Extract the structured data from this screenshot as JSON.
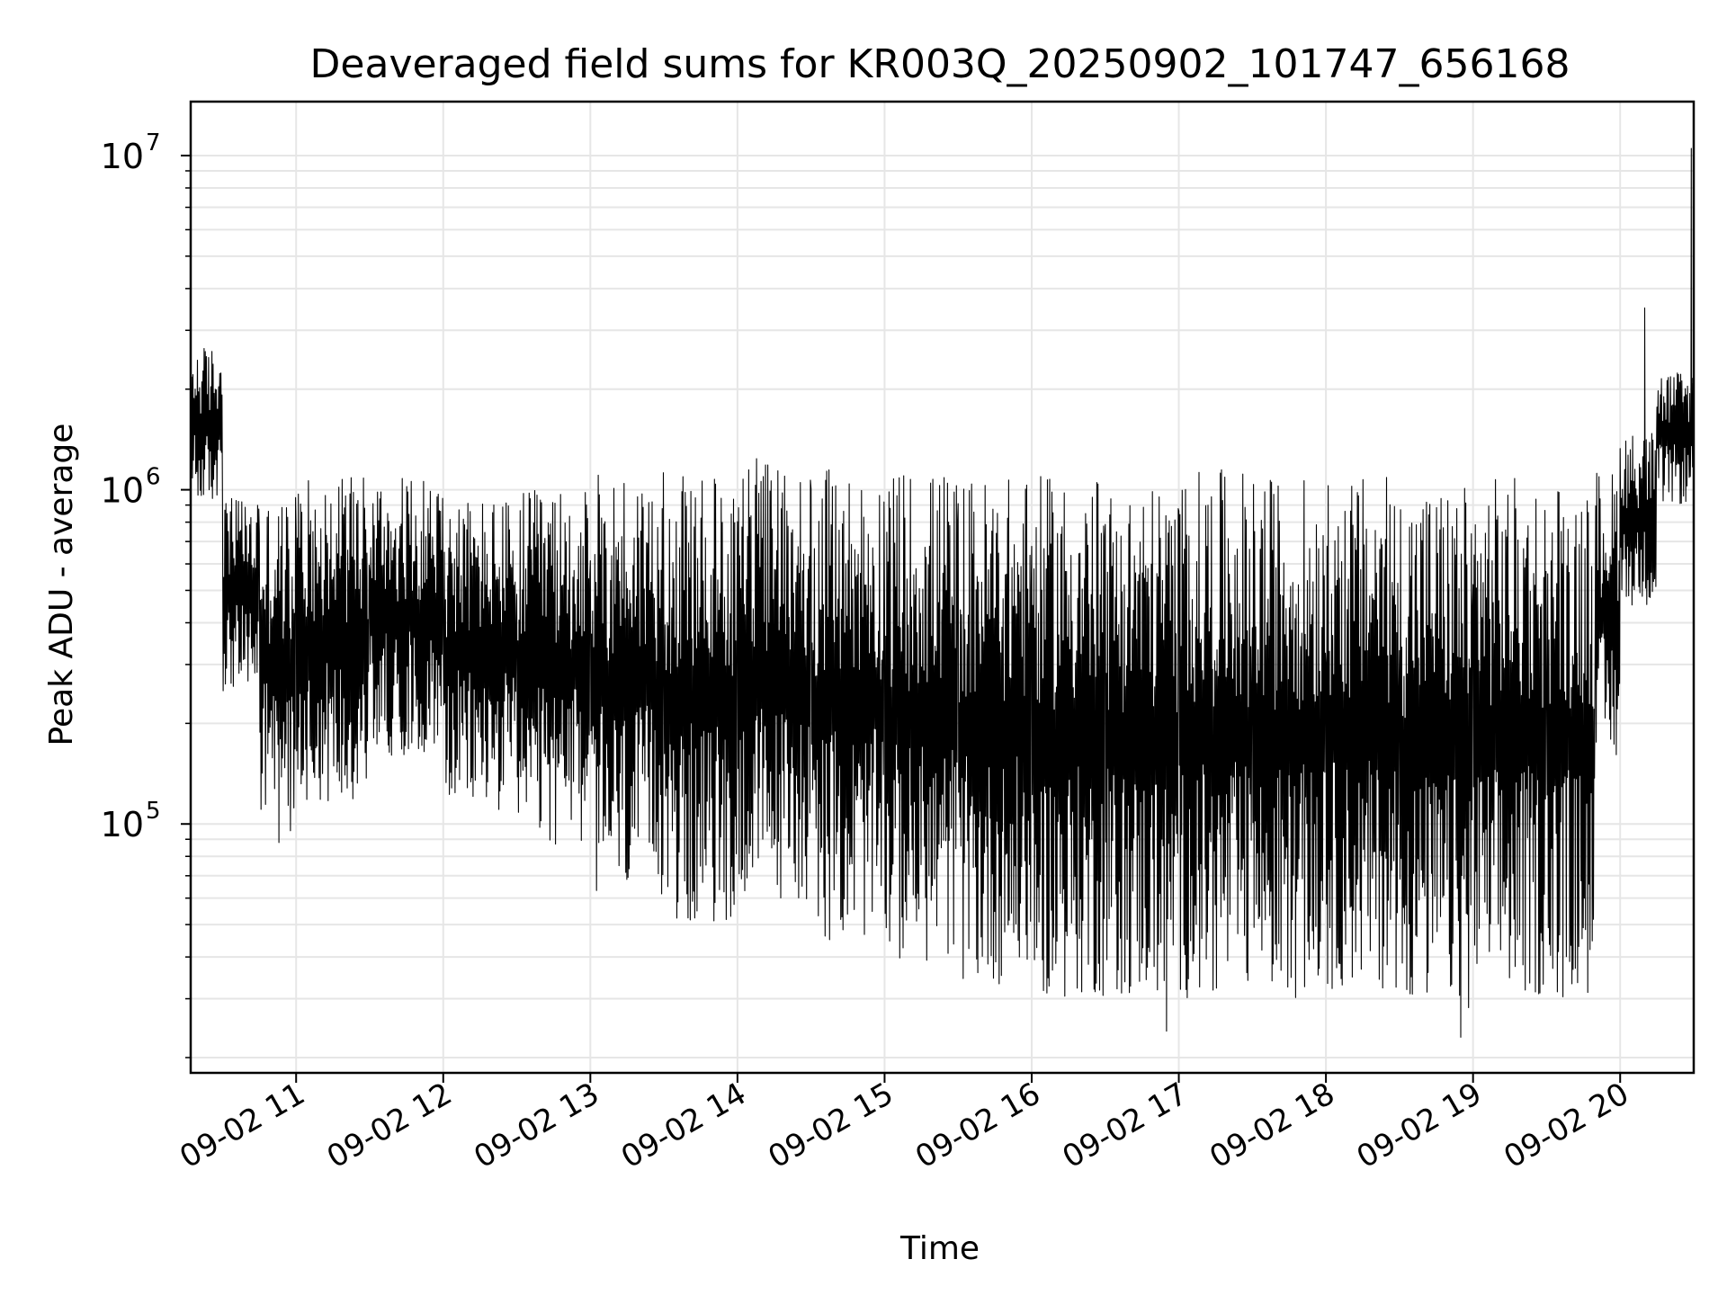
{
  "chart_data": {
    "type": "line",
    "title": "Deaveraged field sums for KR003Q_20250902_101747_656168",
    "xlabel": "Time",
    "ylabel": "Peak ADU - average",
    "yscale": "log",
    "ylim": [
      18000,
      14500000
    ],
    "xlim": [
      "2025-09-02 10:17",
      "2025-09-02 20:30"
    ],
    "grid": true,
    "line_color": "#000000",
    "grid_color": "#e6e6e6",
    "x_ticks": [
      {
        "t": "2025-09-02 11:00",
        "label": "09-02 11"
      },
      {
        "t": "2025-09-02 12:00",
        "label": "09-02 12"
      },
      {
        "t": "2025-09-02 13:00",
        "label": "09-02 13"
      },
      {
        "t": "2025-09-02 14:00",
        "label": "09-02 14"
      },
      {
        "t": "2025-09-02 15:00",
        "label": "09-02 15"
      },
      {
        "t": "2025-09-02 16:00",
        "label": "09-02 16"
      },
      {
        "t": "2025-09-02 17:00",
        "label": "09-02 17"
      },
      {
        "t": "2025-09-02 18:00",
        "label": "09-02 18"
      },
      {
        "t": "2025-09-02 19:00",
        "label": "09-02 19"
      },
      {
        "t": "2025-09-02 20:00",
        "label": "09-02 20"
      }
    ],
    "y_ticks": [
      {
        "value": 100000,
        "base": "10",
        "exp": "5"
      },
      {
        "value": 1000000,
        "base": "10",
        "exp": "6"
      },
      {
        "value": 10000000,
        "base": "10",
        "exp": "7"
      }
    ],
    "series": [
      {
        "segments": [
          {
            "start": "2025-09-02 10:17",
            "end": "2025-09-02 10:30",
            "low": 900000,
            "high": 2700000
          },
          {
            "start": "2025-09-02 10:30",
            "end": "2025-09-02 10:45",
            "low": 250000,
            "high": 950000
          },
          {
            "start": "2025-09-02 10:45",
            "end": "2025-09-02 11:00",
            "low": 95000,
            "high": 950000
          },
          {
            "start": "2025-09-02 11:00",
            "end": "2025-09-02 11:30",
            "low": 115000,
            "high": 1100000
          },
          {
            "start": "2025-09-02 11:30",
            "end": "2025-09-02 12:00",
            "low": 160000,
            "high": 1100000
          },
          {
            "start": "2025-09-02 12:00",
            "end": "2025-09-02 12:30",
            "low": 110000,
            "high": 950000
          },
          {
            "start": "2025-09-02 12:30",
            "end": "2025-09-02 13:00",
            "low": 85000,
            "high": 1000000
          },
          {
            "start": "2025-09-02 13:00",
            "end": "2025-09-02 13:30",
            "low": 60000,
            "high": 1150000
          },
          {
            "start": "2025-09-02 13:30",
            "end": "2025-09-02 14:00",
            "low": 50000,
            "high": 1100000
          },
          {
            "start": "2025-09-02 14:00",
            "end": "2025-09-02 14:30",
            "low": 58000,
            "high": 1250000
          },
          {
            "start": "2025-09-02 14:30",
            "end": "2025-09-02 15:00",
            "low": 45000,
            "high": 1150000
          },
          {
            "start": "2025-09-02 15:00",
            "end": "2025-09-02 15:30",
            "low": 38000,
            "high": 1150000
          },
          {
            "start": "2025-09-02 15:30",
            "end": "2025-09-02 16:00",
            "low": 33000,
            "high": 1100000
          },
          {
            "start": "2025-09-02 16:00",
            "end": "2025-09-02 16:30",
            "low": 30000,
            "high": 1100000
          },
          {
            "start": "2025-09-02 16:30",
            "end": "2025-09-02 17:00",
            "low": 30000,
            "high": 1050000
          },
          {
            "start": "2025-09-02 17:00",
            "end": "2025-09-02 17:30",
            "low": 30000,
            "high": 1150000
          },
          {
            "start": "2025-09-02 17:30",
            "end": "2025-09-02 18:00",
            "low": 30000,
            "high": 1100000
          },
          {
            "start": "2025-09-02 18:00",
            "end": "2025-09-02 18:30",
            "low": 32000,
            "high": 1100000
          },
          {
            "start": "2025-09-02 18:30",
            "end": "2025-09-02 19:00",
            "low": 28000,
            "high": 1050000
          },
          {
            "start": "2025-09-02 19:00",
            "end": "2025-09-02 19:30",
            "low": 30000,
            "high": 1100000
          },
          {
            "start": "2025-09-02 19:30",
            "end": "2025-09-02 19:50",
            "low": 30000,
            "high": 1100000
          },
          {
            "start": "2025-09-02 19:50",
            "end": "2025-09-02 20:00",
            "low": 150000,
            "high": 1150000
          },
          {
            "start": "2025-09-02 20:00",
            "end": "2025-09-02 20:15",
            "low": 450000,
            "high": 1500000
          },
          {
            "start": "2025-09-02 20:15",
            "end": "2025-09-02 20:30",
            "low": 900000,
            "high": 2300000
          }
        ],
        "spikes": [
          {
            "t": "2025-09-02 10:53",
            "value": 88000
          },
          {
            "t": "2025-09-02 16:55",
            "value": 24000
          },
          {
            "t": "2025-09-02 18:55",
            "value": 23000
          },
          {
            "t": "2025-09-02 20:10",
            "value": 3500000
          },
          {
            "t": "2025-09-02 20:29",
            "value": 10500000
          }
        ]
      }
    ]
  }
}
